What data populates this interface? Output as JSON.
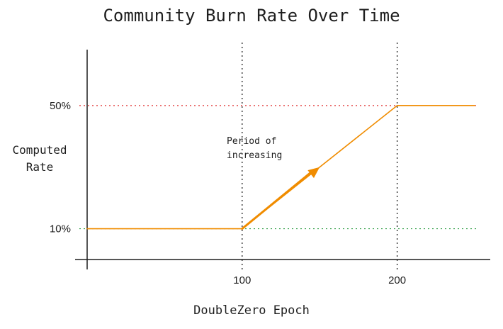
{
  "chart_data": {
    "type": "line",
    "title": "Community Burn Rate Over Time",
    "xlabel": "DoubleZero Epoch",
    "ylabel": "Computed Rate",
    "x_ticks": [
      100,
      200
    ],
    "y_ticks": [
      {
        "value": 10,
        "label": "10%"
      },
      {
        "value": 50,
        "label": "50%"
      }
    ],
    "xlim": [
      0,
      250
    ],
    "ylim": [
      0,
      70
    ],
    "series": [
      {
        "points": [
          {
            "x": 0,
            "y": 10
          },
          {
            "x": 100,
            "y": 10
          },
          {
            "x": 200,
            "y": 50
          },
          {
            "x": 250,
            "y": 50
          }
        ]
      }
    ],
    "annotation": {
      "lines": [
        "Period of",
        "increasing"
      ],
      "arrow_from": {
        "x": 100,
        "y": 10
      },
      "arrow_to": {
        "x": 150,
        "y": 30
      }
    },
    "colors": {
      "series": "#f08c00",
      "upper_threshold": "#e03131",
      "lower_threshold": "#2f9e44",
      "guide": "#1e1e1e"
    }
  }
}
